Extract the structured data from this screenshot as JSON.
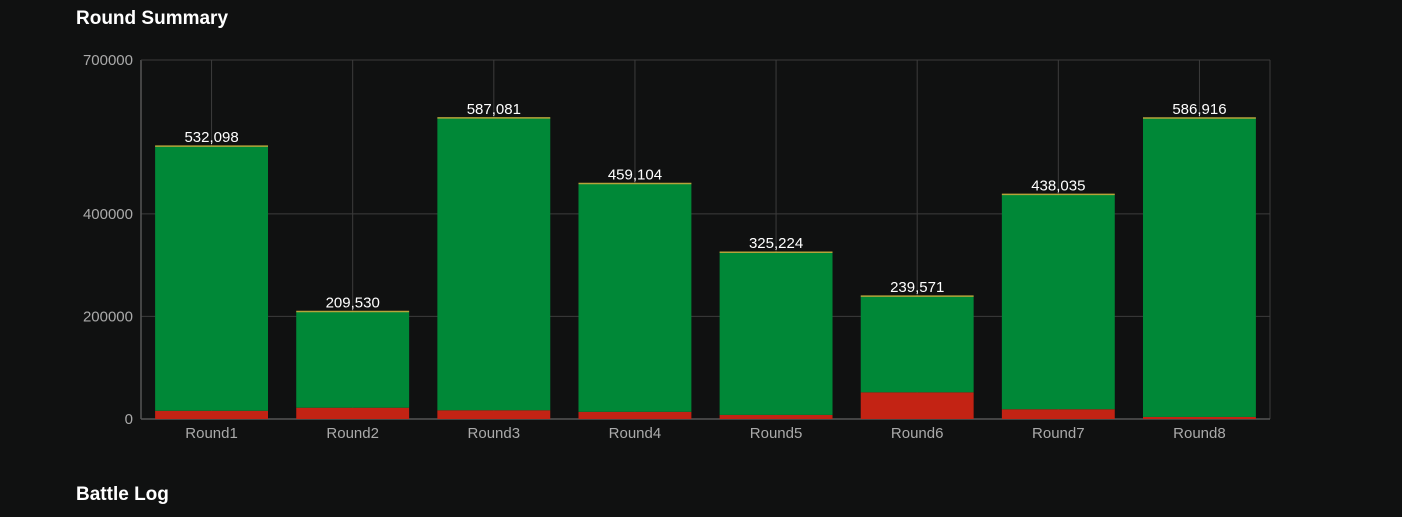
{
  "headings": {
    "round_summary": "Round Summary",
    "battle_log": "Battle Log"
  },
  "chart_data": {
    "type": "bar",
    "stacked": true,
    "categories": [
      "Round1",
      "Round2",
      "Round3",
      "Round4",
      "Round5",
      "Round6",
      "Round7",
      "Round8"
    ],
    "series": [
      {
        "color": "#c32314",
        "values": [
          16000,
          22000,
          17000,
          14000,
          8000,
          52000,
          19000,
          4000
        ]
      },
      {
        "color": "#008837",
        "values": [
          516098,
          187530,
          570081,
          445104,
          317224,
          187571,
          419035,
          582916
        ]
      }
    ],
    "totals": [
      532098,
      209530,
      587081,
      459104,
      325224,
      239571,
      438035,
      586916
    ],
    "total_labels": [
      "532,098",
      "209,530",
      "587,081",
      "459,104",
      "325,224",
      "239,571",
      "438,035",
      "586,916"
    ],
    "yticks": [
      0,
      200000,
      400000,
      700000
    ],
    "ytick_labels": [
      "0",
      "200000",
      "400000",
      "700000"
    ],
    "ylim": [
      0,
      700000
    ],
    "grid": true,
    "colors": {
      "background": "#101111",
      "grid": "#3c3c3c",
      "axis": "#555555",
      "total_line": "#b5a33a"
    }
  }
}
